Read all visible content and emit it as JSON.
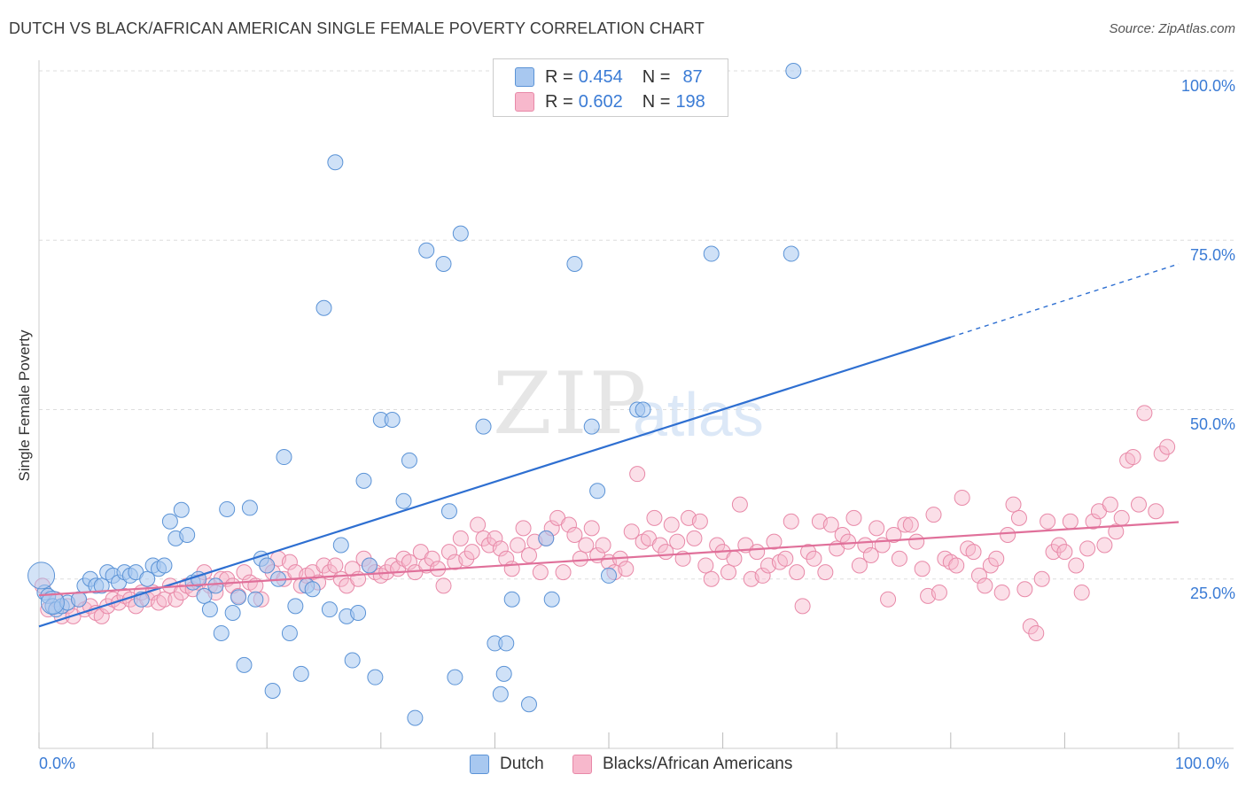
{
  "title": "DUTCH VS BLACK/AFRICAN AMERICAN SINGLE FEMALE POVERTY CORRELATION CHART",
  "source": "Source: ZipAtlas.com",
  "watermark": {
    "zip": "ZIP",
    "atlas": "atlas"
  },
  "legend": {
    "dutch": {
      "r_label": "R =",
      "r_value": "0.454",
      "n_label": "N =",
      "n_value": "87"
    },
    "black": {
      "r_label": "R =",
      "r_value": "0.602",
      "n_label": "N =",
      "n_value": "198"
    }
  },
  "bottom_legend": {
    "dutch": "Dutch",
    "black": "Blacks/African Americans"
  },
  "colors": {
    "dutch_fill": "#a8c8f0",
    "dutch_stroke": "#5b93d6",
    "dutch_line": "#2e6fd1",
    "black_fill": "#f7b8cc",
    "black_stroke": "#e889a8",
    "black_line": "#e0709a",
    "axis_label": "#3a7bd5",
    "grid": "#dddddd"
  },
  "chart_data": {
    "type": "scatter",
    "title": "DUTCH VS BLACK/AFRICAN AMERICAN SINGLE FEMALE POVERTY CORRELATION CHART",
    "xlabel": "",
    "ylabel": "Single Female Poverty",
    "xlim": [
      0,
      100
    ],
    "ylim": [
      0,
      100
    ],
    "x_tick_labels": [
      "0.0%",
      "100.0%"
    ],
    "y_ticks": [
      25,
      50,
      75,
      100
    ],
    "y_tick_labels": [
      "25.0%",
      "50.0%",
      "75.0%",
      "100.0%"
    ],
    "grid": true,
    "legend_position": "top-center",
    "series": [
      {
        "name": "Dutch",
        "r": 0.454,
        "n": 87,
        "trend": {
          "x0": 0,
          "y0": 18.0,
          "x1": 80,
          "y1": 60.7,
          "dash_to_x": 100,
          "dash_to_y": 71.5
        },
        "points": [
          [
            0.5,
            23
          ],
          [
            0.8,
            22.5
          ],
          [
            1.2,
            21
          ],
          [
            1.5,
            20.5
          ],
          [
            2,
            21
          ],
          [
            2.5,
            21.5
          ],
          [
            3.5,
            22
          ],
          [
            4,
            24
          ],
          [
            4.5,
            25
          ],
          [
            5,
            24
          ],
          [
            5.5,
            24
          ],
          [
            6,
            26
          ],
          [
            6.5,
            25.5
          ],
          [
            7,
            24.5
          ],
          [
            7.5,
            26
          ],
          [
            8,
            25.5
          ],
          [
            8.5,
            26
          ],
          [
            9,
            22
          ],
          [
            9.5,
            25
          ],
          [
            10,
            27
          ],
          [
            10.5,
            26.5
          ],
          [
            11,
            27
          ],
          [
            11.5,
            33.5
          ],
          [
            12,
            31
          ],
          [
            12.5,
            35.2
          ],
          [
            13,
            31.5
          ],
          [
            13.5,
            24.5
          ],
          [
            14,
            25
          ],
          [
            14.5,
            22.5
          ],
          [
            15,
            20.5
          ],
          [
            15.5,
            24
          ],
          [
            16,
            17
          ],
          [
            16.5,
            35.3
          ],
          [
            17,
            20
          ],
          [
            17.5,
            22.3
          ],
          [
            18,
            12.3
          ],
          [
            18.5,
            35.5
          ],
          [
            19,
            22
          ],
          [
            19.5,
            28
          ],
          [
            20,
            27
          ],
          [
            20.5,
            8.5
          ],
          [
            21,
            25
          ],
          [
            21.5,
            43
          ],
          [
            22,
            17
          ],
          [
            22.5,
            21
          ],
          [
            23,
            11
          ],
          [
            23.5,
            24
          ],
          [
            24,
            23.5
          ],
          [
            25,
            65
          ],
          [
            25.5,
            20.5
          ],
          [
            26,
            86.5
          ],
          [
            26.5,
            30
          ],
          [
            27,
            19.5
          ],
          [
            27.5,
            13
          ],
          [
            28,
            20
          ],
          [
            28.5,
            39.5
          ],
          [
            29,
            27
          ],
          [
            29.5,
            10.5
          ],
          [
            30,
            48.5
          ],
          [
            31,
            48.5
          ],
          [
            32,
            36.5
          ],
          [
            32.5,
            42.5
          ],
          [
            33,
            4.5
          ],
          [
            34,
            73.5
          ],
          [
            35.5,
            71.5
          ],
          [
            36,
            35
          ],
          [
            36.5,
            10.5
          ],
          [
            37,
            76
          ],
          [
            39,
            47.5
          ],
          [
            40,
            15.5
          ],
          [
            40.5,
            8
          ],
          [
            40.8,
            11
          ],
          [
            41,
            15.5
          ],
          [
            41.5,
            22
          ],
          [
            43,
            6.5
          ],
          [
            44.5,
            31
          ],
          [
            45,
            22
          ],
          [
            47,
            71.5
          ],
          [
            48.5,
            47.5
          ],
          [
            49,
            38
          ],
          [
            50,
            25.5
          ],
          [
            52.5,
            50
          ],
          [
            53,
            50
          ],
          [
            59,
            73
          ],
          [
            66,
            73
          ],
          [
            66.2,
            100
          ]
        ]
      },
      {
        "name": "Blacks/African Americans",
        "r": 0.602,
        "n": 198,
        "trend": {
          "x0": 0,
          "y0": 22.6,
          "x1": 100,
          "y1": 33.4
        },
        "points": [
          [
            0.3,
            24
          ],
          [
            0.8,
            20.5
          ],
          [
            1.5,
            22
          ],
          [
            2,
            19.5
          ],
          [
            2.5,
            21
          ],
          [
            3,
            19.5
          ],
          [
            3.5,
            22
          ],
          [
            4,
            20.5
          ],
          [
            4.5,
            21
          ],
          [
            5,
            20
          ],
          [
            5.5,
            19.5
          ],
          [
            6,
            21
          ],
          [
            6.5,
            22
          ],
          [
            7,
            21.5
          ],
          [
            7.5,
            22.5
          ],
          [
            8,
            22
          ],
          [
            8.5,
            21
          ],
          [
            9,
            23
          ],
          [
            9.5,
            22
          ],
          [
            10,
            23
          ],
          [
            10.5,
            21.5
          ],
          [
            11,
            22
          ],
          [
            11.5,
            24
          ],
          [
            12,
            22
          ],
          [
            12.5,
            23
          ],
          [
            13,
            24
          ],
          [
            13.5,
            23.5
          ],
          [
            14,
            24.5
          ],
          [
            14.5,
            26
          ],
          [
            15,
            24
          ],
          [
            15.5,
            23
          ],
          [
            16,
            25
          ],
          [
            16.5,
            25
          ],
          [
            17,
            24
          ],
          [
            17.5,
            22.5
          ],
          [
            18,
            26
          ],
          [
            18.5,
            24.5
          ],
          [
            19,
            24
          ],
          [
            19.5,
            22
          ],
          [
            20,
            27
          ],
          [
            20.5,
            26
          ],
          [
            21,
            28
          ],
          [
            21.5,
            25
          ],
          [
            22,
            27.5
          ],
          [
            22.5,
            26
          ],
          [
            23,
            24
          ],
          [
            23.5,
            25.5
          ],
          [
            24,
            26
          ],
          [
            24.5,
            24.5
          ],
          [
            25,
            27
          ],
          [
            25.5,
            26
          ],
          [
            26,
            27
          ],
          [
            26.5,
            25
          ],
          [
            27,
            24
          ],
          [
            27.5,
            26.5
          ],
          [
            28,
            25
          ],
          [
            28.5,
            28
          ],
          [
            29,
            27
          ],
          [
            29.5,
            26
          ],
          [
            30,
            25.5
          ],
          [
            30.5,
            26
          ],
          [
            31,
            27
          ],
          [
            31.5,
            26.5
          ],
          [
            32,
            28
          ],
          [
            32.5,
            27.5
          ],
          [
            33,
            26
          ],
          [
            33.5,
            29
          ],
          [
            34,
            27
          ],
          [
            34.5,
            28
          ],
          [
            35,
            26.5
          ],
          [
            35.5,
            24
          ],
          [
            36,
            29
          ],
          [
            36.5,
            27.5
          ],
          [
            37,
            31
          ],
          [
            37.5,
            28
          ],
          [
            38,
            29
          ],
          [
            38.5,
            33
          ],
          [
            39,
            31
          ],
          [
            39.5,
            30
          ],
          [
            40,
            31
          ],
          [
            40.5,
            29.5
          ],
          [
            41,
            28
          ],
          [
            41.5,
            26.5
          ],
          [
            42,
            30
          ],
          [
            42.5,
            32.5
          ],
          [
            43,
            28.5
          ],
          [
            43.5,
            30.5
          ],
          [
            44,
            26
          ],
          [
            44.5,
            31
          ],
          [
            45,
            32.5
          ],
          [
            45.5,
            34
          ],
          [
            46,
            26
          ],
          [
            46.5,
            33
          ],
          [
            47,
            31.5
          ],
          [
            47.5,
            28
          ],
          [
            48,
            30
          ],
          [
            48.5,
            32.5
          ],
          [
            49,
            28.5
          ],
          [
            49.5,
            30
          ],
          [
            50,
            27.5
          ],
          [
            50.5,
            26
          ],
          [
            51,
            28
          ],
          [
            51.5,
            26.5
          ],
          [
            52,
            32
          ],
          [
            52.5,
            40.5
          ],
          [
            53,
            30.5
          ],
          [
            53.5,
            31
          ],
          [
            54,
            34
          ],
          [
            54.5,
            30
          ],
          [
            55,
            29
          ],
          [
            55.5,
            33
          ],
          [
            56,
            30.5
          ],
          [
            56.5,
            28
          ],
          [
            57,
            34
          ],
          [
            57.5,
            31
          ],
          [
            58,
            33.5
          ],
          [
            58.5,
            27
          ],
          [
            59,
            25
          ],
          [
            59.5,
            30
          ],
          [
            60,
            29
          ],
          [
            60.5,
            26
          ],
          [
            61,
            28
          ],
          [
            61.5,
            36
          ],
          [
            62,
            30
          ],
          [
            62.5,
            25
          ],
          [
            63,
            29
          ],
          [
            63.5,
            25.5
          ],
          [
            64,
            27
          ],
          [
            64.5,
            30.5
          ],
          [
            65,
            27.5
          ],
          [
            65.5,
            28
          ],
          [
            66,
            33.5
          ],
          [
            66.5,
            26
          ],
          [
            67,
            21
          ],
          [
            67.5,
            29
          ],
          [
            68,
            28
          ],
          [
            68.5,
            33.5
          ],
          [
            69,
            26
          ],
          [
            69.5,
            33
          ],
          [
            70,
            29.5
          ],
          [
            70.5,
            31.5
          ],
          [
            71,
            30.5
          ],
          [
            71.5,
            34
          ],
          [
            72,
            27
          ],
          [
            72.5,
            30
          ],
          [
            73,
            28.5
          ],
          [
            73.5,
            32.5
          ],
          [
            74,
            30
          ],
          [
            74.5,
            22
          ],
          [
            75,
            31.5
          ],
          [
            75.5,
            28
          ],
          [
            76,
            33
          ],
          [
            76.5,
            33
          ],
          [
            77,
            30.5
          ],
          [
            77.5,
            26.5
          ],
          [
            78,
            22.5
          ],
          [
            78.5,
            34.5
          ],
          [
            79,
            23
          ],
          [
            79.5,
            28
          ],
          [
            80,
            27.5
          ],
          [
            80.5,
            27
          ],
          [
            81,
            37
          ],
          [
            81.5,
            29.5
          ],
          [
            82,
            29
          ],
          [
            82.5,
            25.5
          ],
          [
            83,
            24
          ],
          [
            83.5,
            27
          ],
          [
            84,
            28
          ],
          [
            84.5,
            23
          ],
          [
            85,
            31.5
          ],
          [
            85.5,
            36
          ],
          [
            86,
            34
          ],
          [
            86.5,
            23.5
          ],
          [
            87,
            18
          ],
          [
            87.5,
            17
          ],
          [
            88,
            25
          ],
          [
            88.5,
            33.5
          ],
          [
            89,
            29
          ],
          [
            89.5,
            30
          ],
          [
            90,
            29
          ],
          [
            90.5,
            33.5
          ],
          [
            91,
            27
          ],
          [
            91.5,
            23
          ],
          [
            92,
            29.5
          ],
          [
            92.5,
            33.5
          ],
          [
            93,
            35
          ],
          [
            93.5,
            30
          ],
          [
            94,
            36
          ],
          [
            94.5,
            32
          ],
          [
            95,
            34
          ],
          [
            95.5,
            42.5
          ],
          [
            96,
            43
          ],
          [
            96.5,
            36
          ],
          [
            97,
            49.5
          ],
          [
            98,
            35
          ],
          [
            98.5,
            43.5
          ],
          [
            99,
            44.5
          ]
        ]
      }
    ]
  }
}
